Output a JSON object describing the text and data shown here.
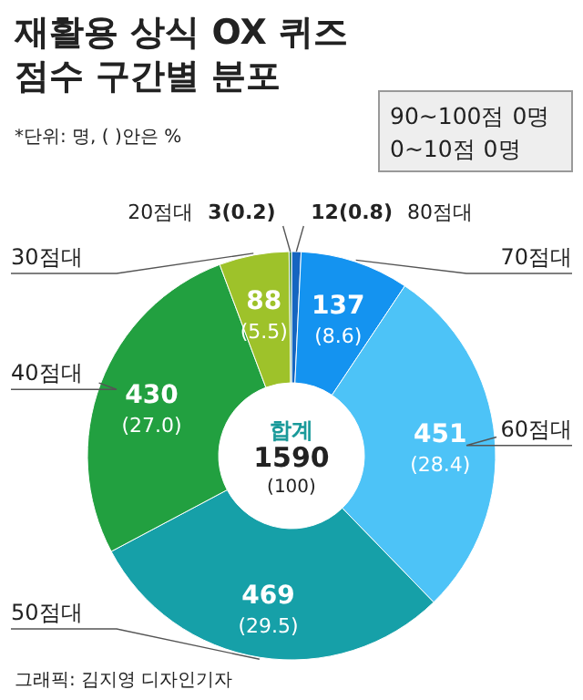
{
  "chart_data": {
    "type": "donut",
    "title": "재활용 상식 OX 퀴즈\n점수 구간별 분포",
    "subtitle": "*단위: 명, ( )안은 %",
    "categories": [
      "80점대",
      "70점대",
      "60점대",
      "50점대",
      "40점대",
      "30점대",
      "20점대"
    ],
    "values": [
      12,
      137,
      451,
      469,
      430,
      88,
      3
    ],
    "value_labels": [
      "12(0.8)",
      "137\n(8.6)",
      "451\n(28.4)",
      "469\n(29.5)",
      "430\n(27.0)",
      "88\n(5.5)",
      "3(0.2)"
    ],
    "colors": [
      "#1565c0",
      "#1493f0",
      "#4dc3f7",
      "#16a0a8",
      "#22a040",
      "#9ec22a",
      "#1b7a3a"
    ],
    "annotations": [
      "90~100점 0명",
      "0~10점 0명",
      "합계",
      "1590",
      "(100)",
      "그래픽: 김지영 디자인기자"
    ]
  }
}
